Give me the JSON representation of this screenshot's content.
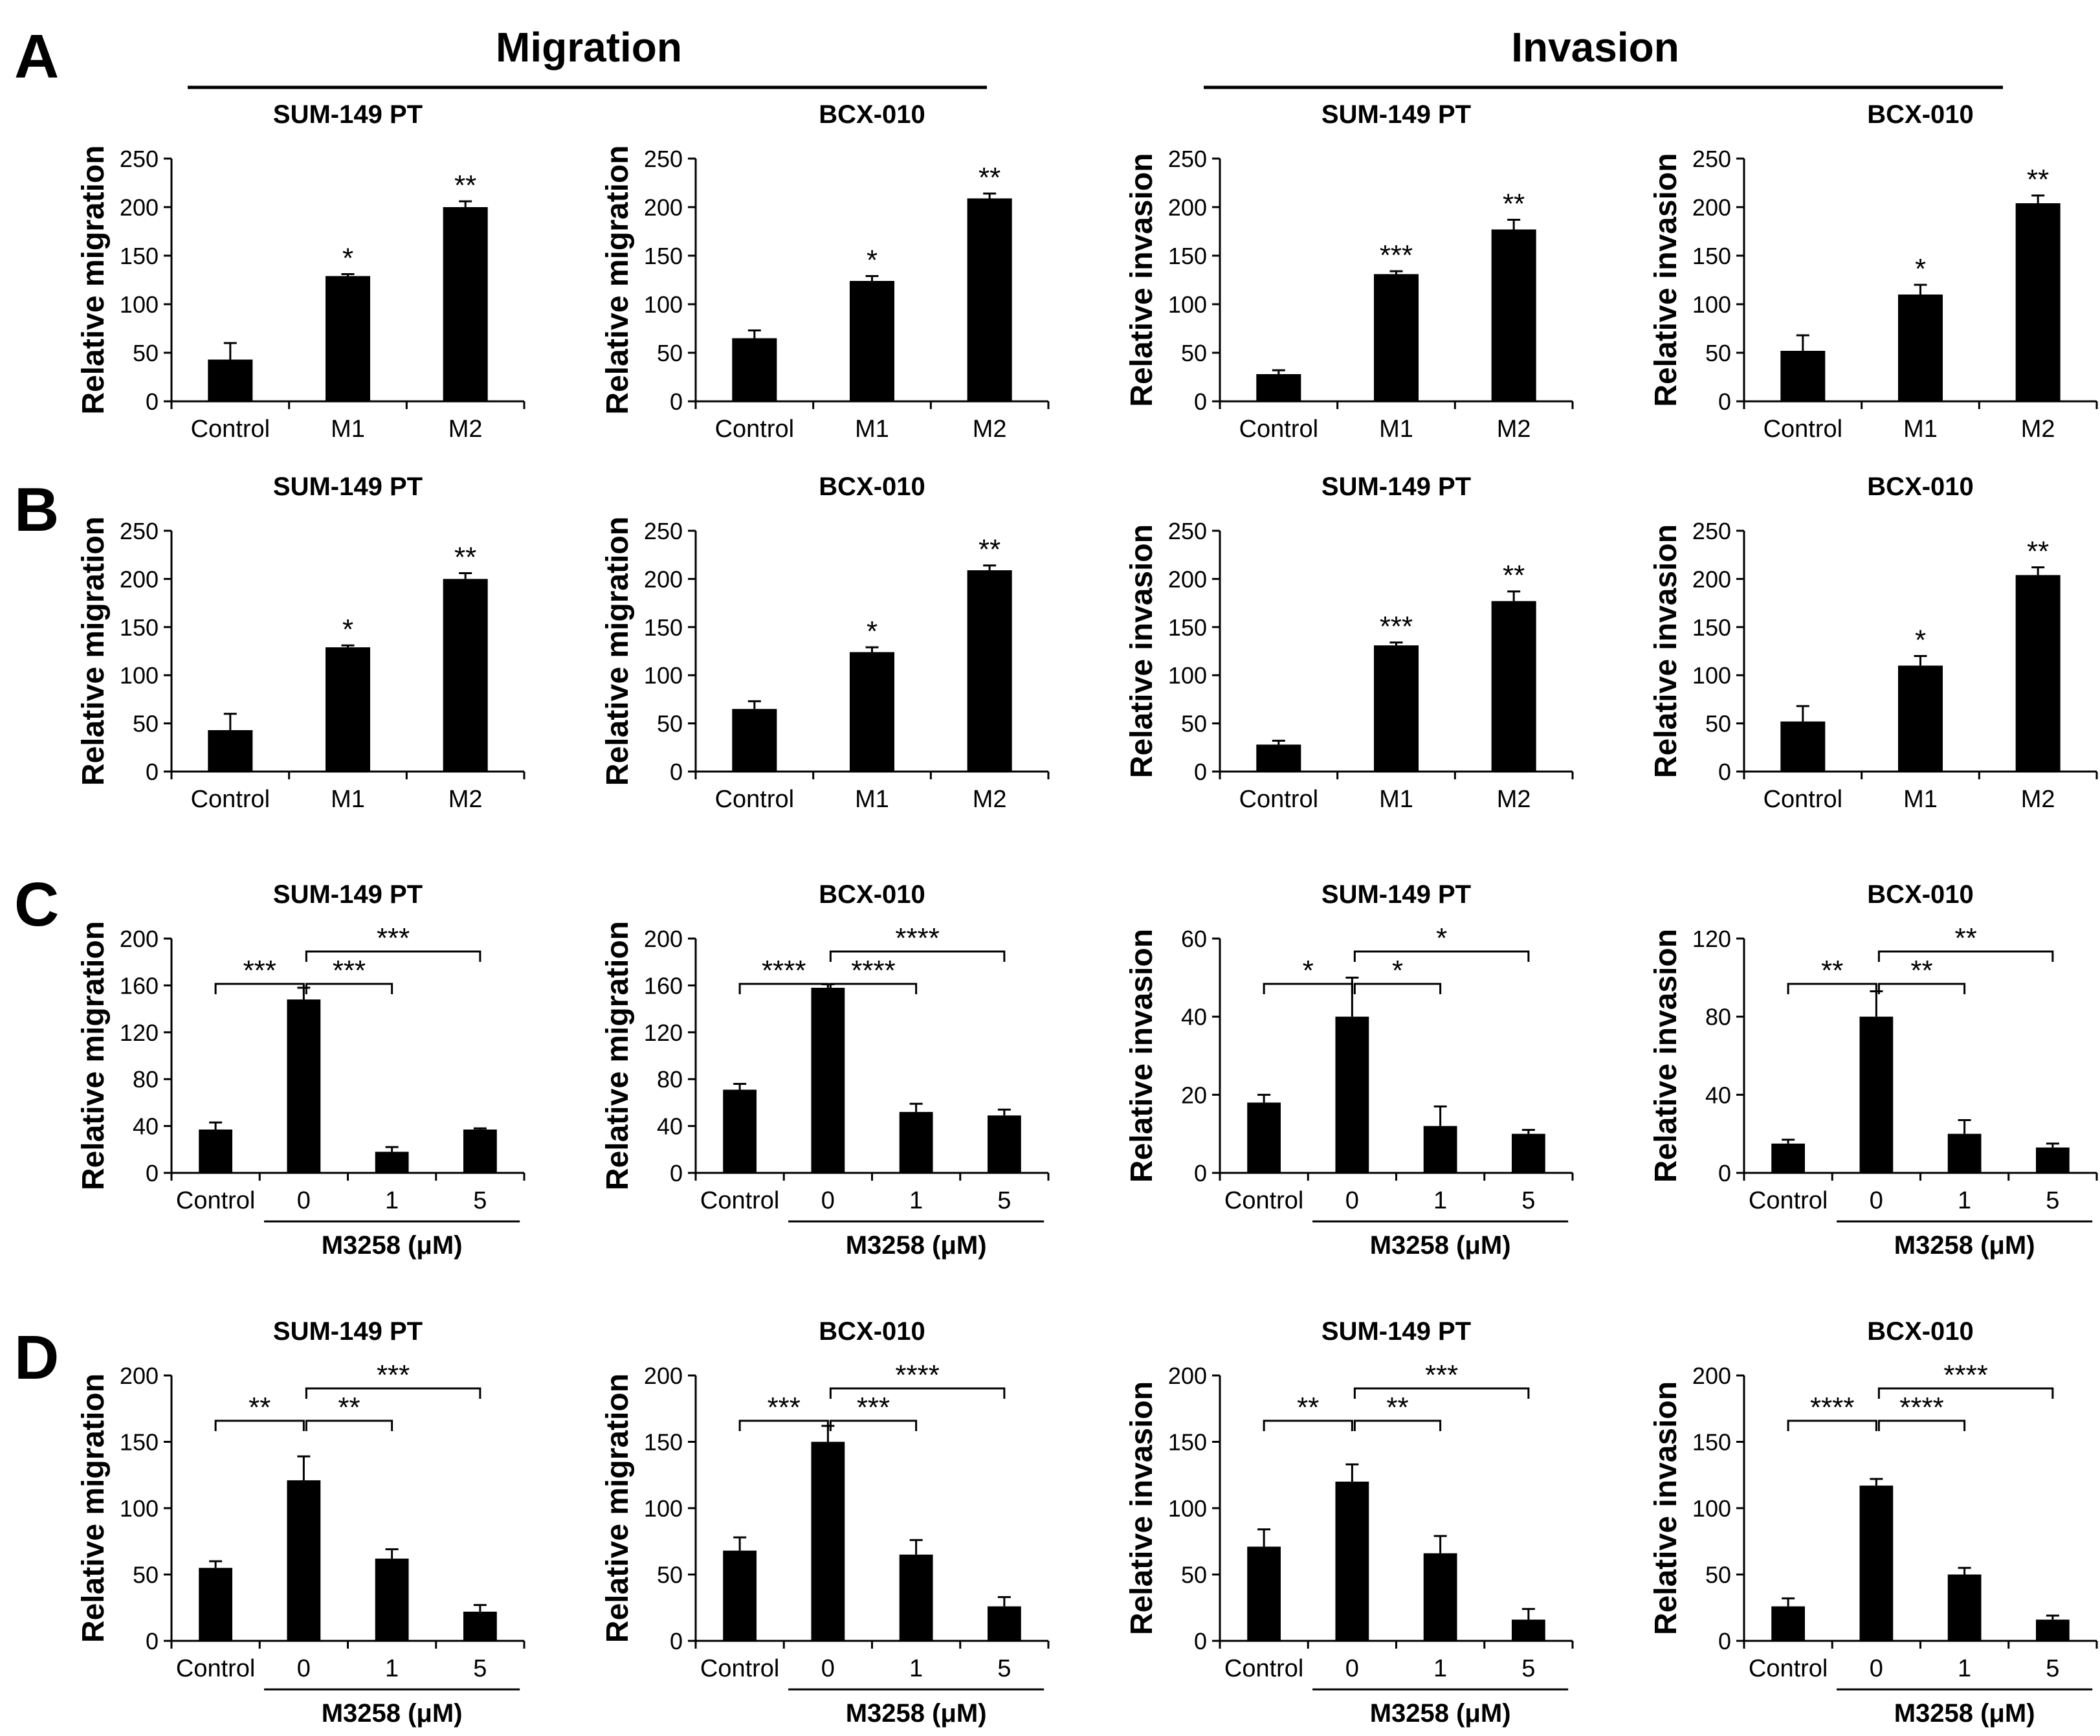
{
  "sections": {
    "migration": "Migration",
    "invasion": "Invasion"
  },
  "panel_labels": [
    "A",
    "B",
    "C",
    "D"
  ],
  "chart_data": [
    {
      "id": "A1",
      "row": "A",
      "col": 0,
      "type": "bar",
      "title": "SUM-149 PT",
      "ylabel": "Relative migration",
      "categories": [
        "Control",
        "M1",
        "M2"
      ],
      "values": [
        43,
        129,
        200
      ],
      "errors": [
        17,
        2,
        6
      ],
      "ylim": [
        0,
        250
      ],
      "yticks": [
        0,
        50,
        100,
        150,
        200,
        250
      ],
      "significance": [
        "",
        "*",
        "**"
      ],
      "xgroup": null,
      "brackets": []
    },
    {
      "id": "A2",
      "row": "A",
      "col": 1,
      "type": "bar",
      "title": "BCX-010",
      "ylabel": "Relative migration",
      "categories": [
        "Control",
        "M1",
        "M2"
      ],
      "values": [
        65,
        124,
        209
      ],
      "errors": [
        8,
        5,
        5
      ],
      "ylim": [
        0,
        250
      ],
      "yticks": [
        0,
        50,
        100,
        150,
        200,
        250
      ],
      "significance": [
        "",
        "*",
        "**"
      ],
      "xgroup": null,
      "brackets": []
    },
    {
      "id": "A3",
      "row": "A",
      "col": 2,
      "type": "bar",
      "title": "SUM-149 PT",
      "ylabel": "Relative invasion",
      "categories": [
        "Control",
        "M1",
        "M2"
      ],
      "values": [
        28,
        131,
        177
      ],
      "errors": [
        4,
        3,
        10
      ],
      "ylim": [
        0,
        250
      ],
      "yticks": [
        0,
        50,
        100,
        150,
        200,
        250
      ],
      "significance": [
        "",
        "***",
        "**"
      ],
      "xgroup": null,
      "brackets": []
    },
    {
      "id": "A4",
      "row": "A",
      "col": 3,
      "type": "bar",
      "title": "BCX-010",
      "ylabel": "Relative invasion",
      "categories": [
        "Control",
        "M1",
        "M2"
      ],
      "values": [
        52,
        110,
        204
      ],
      "errors": [
        16,
        10,
        8
      ],
      "ylim": [
        0,
        250
      ],
      "yticks": [
        0,
        50,
        100,
        150,
        200,
        250
      ],
      "significance": [
        "",
        "*",
        "**"
      ],
      "xgroup": null,
      "brackets": []
    },
    {
      "id": "B1",
      "row": "B",
      "col": 0,
      "type": "bar",
      "title": "SUM-149 PT",
      "ylabel": "Relative migration",
      "categories": [
        "Control",
        "M1",
        "M2"
      ],
      "values": [
        43,
        129,
        200
      ],
      "errors": [
        17,
        2,
        6
      ],
      "ylim": [
        0,
        250
      ],
      "yticks": [
        0,
        50,
        100,
        150,
        200,
        250
      ],
      "significance": [
        "",
        "*",
        "**"
      ],
      "xgroup": null,
      "brackets": []
    },
    {
      "id": "B2",
      "row": "B",
      "col": 1,
      "type": "bar",
      "title": "BCX-010",
      "ylabel": "Relative migration",
      "categories": [
        "Control",
        "M1",
        "M2"
      ],
      "values": [
        65,
        124,
        209
      ],
      "errors": [
        8,
        5,
        5
      ],
      "ylim": [
        0,
        250
      ],
      "yticks": [
        0,
        50,
        100,
        150,
        200,
        250
      ],
      "significance": [
        "",
        "*",
        "**"
      ],
      "xgroup": null,
      "brackets": []
    },
    {
      "id": "B3",
      "row": "B",
      "col": 2,
      "type": "bar",
      "title": "SUM-149 PT",
      "ylabel": "Relative invasion",
      "categories": [
        "Control",
        "M1",
        "M2"
      ],
      "values": [
        28,
        131,
        177
      ],
      "errors": [
        4,
        3,
        10
      ],
      "ylim": [
        0,
        250
      ],
      "yticks": [
        0,
        50,
        100,
        150,
        200,
        250
      ],
      "significance": [
        "",
        "***",
        "**"
      ],
      "xgroup": null,
      "brackets": []
    },
    {
      "id": "B4",
      "row": "B",
      "col": 3,
      "type": "bar",
      "title": "BCX-010",
      "ylabel": "Relative invasion",
      "categories": [
        "Control",
        "M1",
        "M2"
      ],
      "values": [
        52,
        110,
        204
      ],
      "errors": [
        16,
        10,
        8
      ],
      "ylim": [
        0,
        250
      ],
      "yticks": [
        0,
        50,
        100,
        150,
        200,
        250
      ],
      "significance": [
        "",
        "*",
        "**"
      ],
      "xgroup": null,
      "brackets": []
    },
    {
      "id": "C1",
      "row": "C",
      "col": 0,
      "type": "bar",
      "title": "SUM-149 PT",
      "ylabel": "Relative migration",
      "categories": [
        "Control",
        "0",
        "1",
        "5"
      ],
      "values": [
        37,
        148,
        18,
        37
      ],
      "errors": [
        6,
        10,
        4,
        1
      ],
      "ylim": [
        0,
        200
      ],
      "yticks": [
        0,
        40,
        80,
        120,
        160,
        200
      ],
      "significance": [
        "",
        "",
        "",
        ""
      ],
      "xgroup": "M3258 (μM)",
      "brackets": [
        {
          "from": 0,
          "to": 1,
          "label": "***",
          "level": 0
        },
        {
          "from": 1,
          "to": 2,
          "label": "***",
          "level": 0
        },
        {
          "from": 1,
          "to": 3,
          "label": "***",
          "level": 1
        }
      ]
    },
    {
      "id": "C2",
      "row": "C",
      "col": 1,
      "type": "bar",
      "title": "BCX-010",
      "ylabel": "Relative migration",
      "categories": [
        "Control",
        "0",
        "1",
        "5"
      ],
      "values": [
        71,
        158,
        52,
        49
      ],
      "errors": [
        5,
        3,
        7,
        5
      ],
      "ylim": [
        0,
        200
      ],
      "yticks": [
        0,
        40,
        80,
        120,
        160,
        200
      ],
      "significance": [
        "",
        "",
        "",
        ""
      ],
      "xgroup": "M3258 (μM)",
      "brackets": [
        {
          "from": 0,
          "to": 1,
          "label": "****",
          "level": 0
        },
        {
          "from": 1,
          "to": 2,
          "label": "****",
          "level": 0
        },
        {
          "from": 1,
          "to": 3,
          "label": "****",
          "level": 1
        }
      ]
    },
    {
      "id": "C3",
      "row": "C",
      "col": 2,
      "type": "bar",
      "title": "SUM-149 PT",
      "ylabel": "Relative invasion",
      "categories": [
        "Control",
        "0",
        "1",
        "5"
      ],
      "values": [
        18,
        40,
        12,
        10
      ],
      "errors": [
        2,
        10,
        5,
        1
      ],
      "ylim": [
        0,
        60
      ],
      "yticks": [
        0,
        20,
        40,
        60
      ],
      "significance": [
        "",
        "",
        "",
        ""
      ],
      "xgroup": "M3258 (μM)",
      "brackets": [
        {
          "from": 0,
          "to": 1,
          "label": "*",
          "level": 0
        },
        {
          "from": 1,
          "to": 2,
          "label": "*",
          "level": 0
        },
        {
          "from": 1,
          "to": 3,
          "label": "*",
          "level": 1
        }
      ]
    },
    {
      "id": "C4",
      "row": "C",
      "col": 3,
      "type": "bar",
      "title": "BCX-010",
      "ylabel": "Relative invasion",
      "categories": [
        "Control",
        "0",
        "1",
        "5"
      ],
      "values": [
        15,
        80,
        20,
        13
      ],
      "errors": [
        2,
        13,
        7,
        2
      ],
      "ylim": [
        0,
        120
      ],
      "yticks": [
        0,
        40,
        80,
        120
      ],
      "significance": [
        "",
        "",
        "",
        ""
      ],
      "xgroup": "M3258 (μM)",
      "brackets": [
        {
          "from": 0,
          "to": 1,
          "label": "**",
          "level": 0
        },
        {
          "from": 1,
          "to": 2,
          "label": "**",
          "level": 0
        },
        {
          "from": 1,
          "to": 3,
          "label": "**",
          "level": 1
        }
      ]
    },
    {
      "id": "D1",
      "row": "D",
      "col": 0,
      "type": "bar",
      "title": "SUM-149 PT",
      "ylabel": "Relative migration",
      "categories": [
        "Control",
        "0",
        "1",
        "5"
      ],
      "values": [
        55,
        121,
        62,
        22
      ],
      "errors": [
        5,
        18,
        7,
        5
      ],
      "ylim": [
        0,
        200
      ],
      "yticks": [
        0,
        50,
        100,
        150,
        200
      ],
      "significance": [
        "",
        "",
        "",
        ""
      ],
      "xgroup": "M3258 (μM)",
      "brackets": [
        {
          "from": 0,
          "to": 1,
          "label": "**",
          "level": 0
        },
        {
          "from": 1,
          "to": 2,
          "label": "**",
          "level": 0
        },
        {
          "from": 1,
          "to": 3,
          "label": "***",
          "level": 1
        }
      ]
    },
    {
      "id": "D2",
      "row": "D",
      "col": 1,
      "type": "bar",
      "title": "BCX-010",
      "ylabel": "Relative migration",
      "categories": [
        "Control",
        "0",
        "1",
        "5"
      ],
      "values": [
        68,
        150,
        65,
        26
      ],
      "errors": [
        10,
        12,
        11,
        7
      ],
      "ylim": [
        0,
        200
      ],
      "yticks": [
        0,
        50,
        100,
        150,
        200
      ],
      "significance": [
        "",
        "",
        "",
        ""
      ],
      "xgroup": "M3258 (μM)",
      "brackets": [
        {
          "from": 0,
          "to": 1,
          "label": "***",
          "level": 0
        },
        {
          "from": 1,
          "to": 2,
          "label": "***",
          "level": 0
        },
        {
          "from": 1,
          "to": 3,
          "label": "****",
          "level": 1
        }
      ]
    },
    {
      "id": "D3",
      "row": "D",
      "col": 2,
      "type": "bar",
      "title": "SUM-149 PT",
      "ylabel": "Relative invasion",
      "categories": [
        "Control",
        "0",
        "1",
        "5"
      ],
      "values": [
        71,
        120,
        66,
        16
      ],
      "errors": [
        13,
        13,
        13,
        8
      ],
      "ylim": [
        0,
        200
      ],
      "yticks": [
        0,
        50,
        100,
        150,
        200
      ],
      "significance": [
        "",
        "",
        "",
        ""
      ],
      "xgroup": "M3258 (μM)",
      "brackets": [
        {
          "from": 0,
          "to": 1,
          "label": "**",
          "level": 0
        },
        {
          "from": 1,
          "to": 2,
          "label": "**",
          "level": 0
        },
        {
          "from": 1,
          "to": 3,
          "label": "***",
          "level": 1
        }
      ]
    },
    {
      "id": "D4",
      "row": "D",
      "col": 3,
      "type": "bar",
      "title": "BCX-010",
      "ylabel": "Relative invasion",
      "categories": [
        "Control",
        "0",
        "1",
        "5"
      ],
      "values": [
        26,
        117,
        50,
        16
      ],
      "errors": [
        6,
        5,
        5,
        3
      ],
      "ylim": [
        0,
        200
      ],
      "yticks": [
        0,
        50,
        100,
        150,
        200
      ],
      "significance": [
        "",
        "",
        "",
        ""
      ],
      "xgroup": "M3258 (μM)",
      "brackets": [
        {
          "from": 0,
          "to": 1,
          "label": "****",
          "level": 0
        },
        {
          "from": 1,
          "to": 2,
          "label": "****",
          "level": 0
        },
        {
          "from": 1,
          "to": 3,
          "label": "****",
          "level": 1
        }
      ]
    }
  ]
}
